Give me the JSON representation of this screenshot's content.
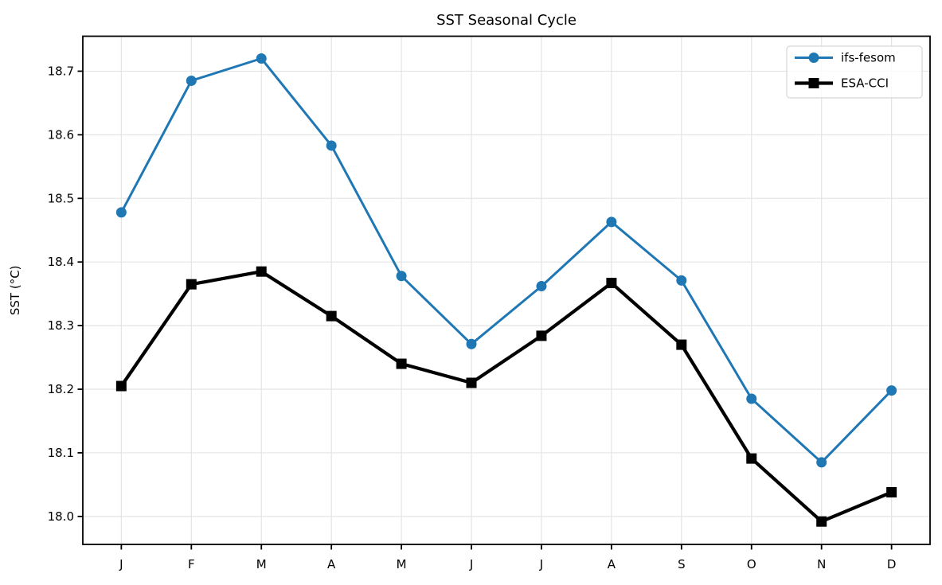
{
  "chart_data": {
    "type": "line",
    "title": "SST Seasonal Cycle",
    "ylabel": "SST (°C)",
    "xlabel": "",
    "categories": [
      "J",
      "F",
      "M",
      "A",
      "M",
      "J",
      "J",
      "A",
      "S",
      "O",
      "N",
      "D"
    ],
    "series": [
      {
        "name": "ifs-fesom",
        "color": "#1f77b4",
        "marker": "circle",
        "linewidth": 3,
        "values": [
          18.478,
          18.685,
          18.72,
          18.583,
          18.378,
          18.271,
          18.362,
          18.463,
          18.371,
          18.185,
          18.085,
          18.198
        ]
      },
      {
        "name": "ESA-CCI",
        "color": "#000000",
        "marker": "square",
        "linewidth": 4.2,
        "values": [
          18.205,
          18.365,
          18.385,
          18.315,
          18.24,
          18.21,
          18.284,
          18.367,
          18.27,
          18.091,
          17.992,
          18.038
        ]
      }
    ],
    "yticks": [
      "18.0",
      "18.1",
      "18.2",
      "18.3",
      "18.4",
      "18.5",
      "18.6",
      "18.7"
    ],
    "ylim": [
      17.956,
      18.755
    ],
    "x_margin": 0.55,
    "grid": true,
    "grid_color": "#e4e4e4",
    "spine_color": "#000000",
    "legend": {
      "position": "upper right",
      "entries": [
        "ifs-fesom",
        "ESA-CCI"
      ]
    }
  }
}
